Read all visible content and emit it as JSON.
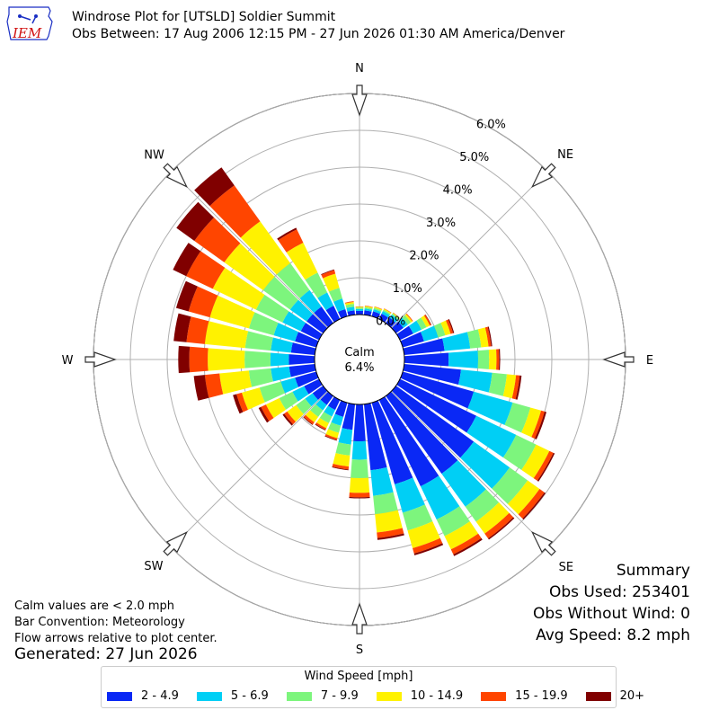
{
  "header": {
    "title": "Windrose Plot for [UTSLD] Soldier Summit",
    "subtitle": "Obs Between: 17 Aug 2006 12:15 PM - 27 Jun 2026 01:30 AM America/Denver",
    "logo_text": "IEM"
  },
  "notes": {
    "calm_def": "Calm values are < 2.0 mph",
    "bar_convention": "Bar Convention: Meteorology",
    "flow_arrows": "Flow arrows relative to plot center.",
    "generated": "Generated: 27 Jun 2026"
  },
  "summary": {
    "title": "Summary",
    "obs_used": "Obs Used: 253401",
    "obs_without_wind": "Obs Without Wind: 0",
    "avg_speed": "Avg Speed: 8.2 mph"
  },
  "legend": {
    "title": "Wind Speed [mph]"
  },
  "colors": {
    "bins": [
      "#0a28f5",
      "#00cff5",
      "#7df57d",
      "#fff200",
      "#ff4500",
      "#800000"
    ],
    "grid": "#b0b0b0",
    "logo": "#1a2fc4",
    "logo_text": "#d01010"
  },
  "chart_data": {
    "type": "windrose",
    "calm_label": "Calm",
    "calm_percent": "6.4%",
    "radial_max": 6.0,
    "radial_ticks": [
      "0.0%",
      "1.0%",
      "2.0%",
      "3.0%",
      "4.0%",
      "5.0%",
      "6.0%"
    ],
    "direction_labels": [
      "N",
      "NE",
      "E",
      "SE",
      "S",
      "SW",
      "W",
      "NW"
    ],
    "speed_bins": [
      "2 - 4.9",
      "5 - 6.9",
      "7 - 9.9",
      "10 - 14.9",
      "15 - 19.9",
      "20+"
    ],
    "directions": [
      {
        "dir": 0,
        "cum": [
          0.1,
          0.15,
          0.19,
          0.21,
          0.22,
          0.22
        ]
      },
      {
        "dir": 10,
        "cum": [
          0.12,
          0.17,
          0.21,
          0.24,
          0.25,
          0.25
        ]
      },
      {
        "dir": 20,
        "cum": [
          0.14,
          0.2,
          0.24,
          0.27,
          0.28,
          0.28
        ]
      },
      {
        "dir": 30,
        "cum": [
          0.16,
          0.24,
          0.28,
          0.31,
          0.32,
          0.32
        ]
      },
      {
        "dir": 40,
        "cum": [
          0.18,
          0.28,
          0.32,
          0.34,
          0.35,
          0.35
        ]
      },
      {
        "dir": 50,
        "cum": [
          0.25,
          0.4,
          0.5,
          0.55,
          0.57,
          0.57
        ]
      },
      {
        "dir": 60,
        "cum": [
          0.4,
          0.65,
          0.8,
          0.9,
          0.94,
          0.95
        ]
      },
      {
        "dir": 70,
        "cum": [
          0.6,
          1.0,
          1.2,
          1.35,
          1.42,
          1.45
        ]
      },
      {
        "dir": 80,
        "cum": [
          1.1,
          1.8,
          2.1,
          2.3,
          2.37,
          2.4
        ]
      },
      {
        "dir": 90,
        "cum": [
          1.2,
          2.0,
          2.3,
          2.5,
          2.57,
          2.6
        ]
      },
      {
        "dir": 100,
        "cum": [
          1.55,
          2.4,
          2.8,
          3.05,
          3.15,
          3.2
        ]
      },
      {
        "dir": 110,
        "cum": [
          2.0,
          3.1,
          3.6,
          3.9,
          4.0,
          4.05
        ]
      },
      {
        "dir": 120,
        "cum": [
          2.3,
          3.5,
          4.1,
          4.5,
          4.62,
          4.66
        ]
      },
      {
        "dir": 130,
        "cum": [
          2.6,
          3.8,
          4.4,
          4.8,
          4.96,
          5.0
        ]
      },
      {
        "dir": 140,
        "cum": [
          2.6,
          3.7,
          4.2,
          4.6,
          4.76,
          4.8
        ]
      },
      {
        "dir": 150,
        "cum": [
          2.6,
          3.6,
          4.1,
          4.5,
          4.65,
          4.7
        ]
      },
      {
        "dir": 160,
        "cum": [
          2.3,
          3.1,
          3.6,
          4.1,
          4.25,
          4.3
        ]
      },
      {
        "dir": 170,
        "cum": [
          1.8,
          2.5,
          3.0,
          3.5,
          3.65,
          3.7
        ]
      },
      {
        "dir": 180,
        "cum": [
          1.0,
          1.5,
          2.0,
          2.4,
          2.52,
          2.55
        ]
      },
      {
        "dir": 190,
        "cum": [
          0.7,
          1.1,
          1.4,
          1.7,
          1.78,
          1.8
        ]
      },
      {
        "dir": 200,
        "cum": [
          0.4,
          0.65,
          0.85,
          1.0,
          1.05,
          1.07
        ]
      },
      {
        "dir": 210,
        "cum": [
          0.3,
          0.5,
          0.7,
          0.85,
          0.9,
          0.92
        ]
      },
      {
        "dir": 220,
        "cum": [
          0.3,
          0.48,
          0.7,
          0.88,
          0.95,
          0.97
        ]
      },
      {
        "dir": 230,
        "cum": [
          0.35,
          0.6,
          0.9,
          1.2,
          1.3,
          1.35
        ]
      },
      {
        "dir": 240,
        "cum": [
          0.45,
          0.8,
          1.2,
          1.6,
          1.75,
          1.82
        ]
      },
      {
        "dir": 250,
        "cum": [
          0.6,
          1.0,
          1.6,
          2.1,
          2.25,
          2.35
        ]
      },
      {
        "dir": 260,
        "cum": [
          0.7,
          1.2,
          1.8,
          2.6,
          3.0,
          3.3
        ]
      },
      {
        "dir": 270,
        "cum": [
          0.7,
          1.2,
          1.9,
          2.9,
          3.4,
          3.7
        ]
      },
      {
        "dir": 280,
        "cum": [
          0.65,
          1.2,
          1.9,
          3.0,
          3.5,
          3.85
        ]
      },
      {
        "dir": 290,
        "cum": [
          0.6,
          1.2,
          1.9,
          3.0,
          3.6,
          3.95
        ]
      },
      {
        "dir": 300,
        "cum": [
          0.55,
          1.1,
          1.9,
          3.2,
          4.0,
          4.4
        ]
      },
      {
        "dir": 310,
        "cum": [
          0.55,
          1.1,
          2.0,
          3.3,
          4.3,
          4.9
        ]
      },
      {
        "dir": 320,
        "cum": [
          0.55,
          1.1,
          2.0,
          3.4,
          4.6,
          5.2
        ]
      },
      {
        "dir": 330,
        "cum": [
          0.4,
          0.8,
          1.4,
          2.3,
          2.7,
          2.75
        ]
      },
      {
        "dir": 340,
        "cum": [
          0.2,
          0.5,
          0.8,
          1.2,
          1.3,
          1.32
        ]
      },
      {
        "dir": 350,
        "cum": [
          0.12,
          0.22,
          0.3,
          0.35,
          0.37,
          0.37
        ]
      }
    ]
  }
}
